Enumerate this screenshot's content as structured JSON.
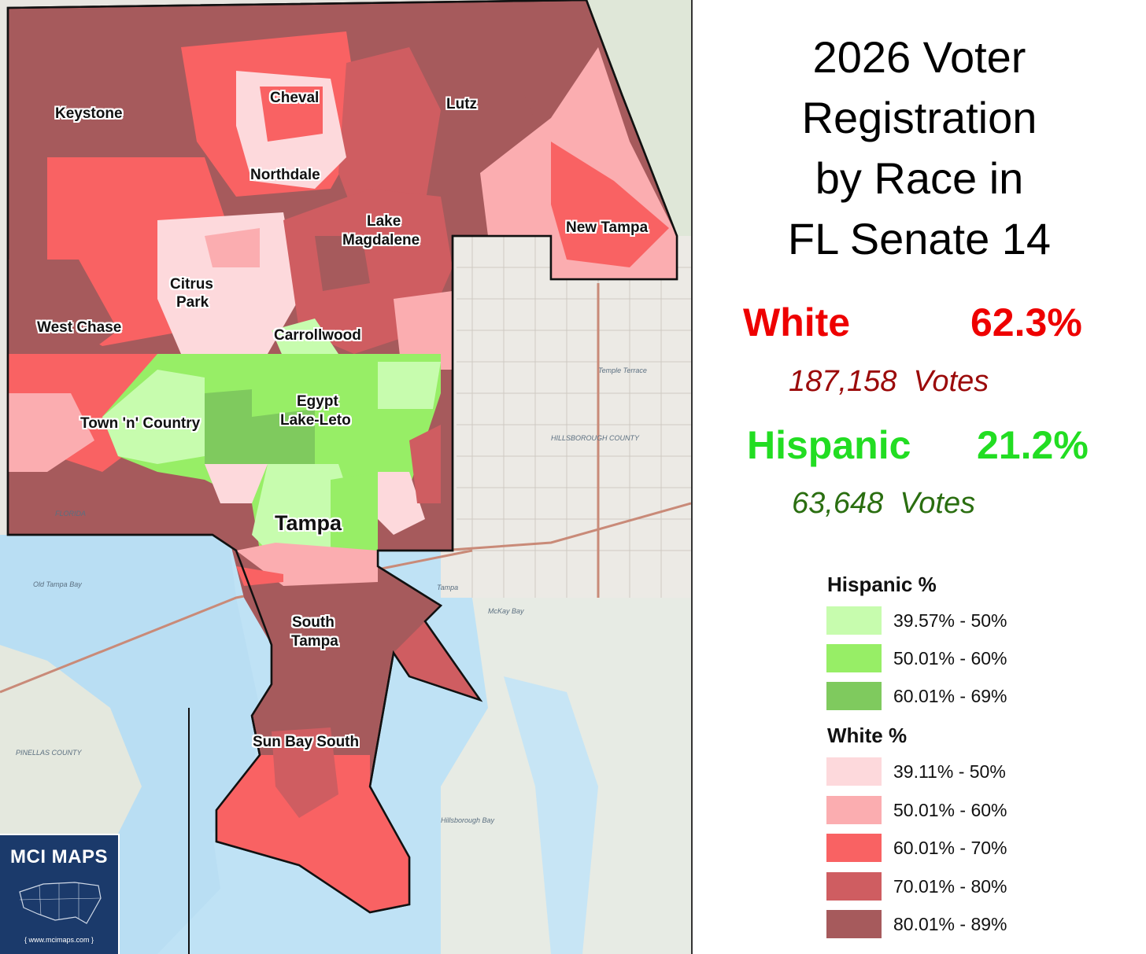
{
  "title_lines": [
    "2026 Voter",
    "Registration",
    "by Race in",
    "FL Senate 14"
  ],
  "stats": {
    "white": {
      "name": "White",
      "pct": "62.3%",
      "votes": "187,158",
      "votes_word": "Votes",
      "color": "#ee0000",
      "votes_color": "#9b0a0a"
    },
    "hispanic": {
      "name": "Hispanic",
      "pct": "21.2%",
      "votes": "63,648",
      "votes_word": "Votes",
      "color": "#22dd22",
      "votes_color": "#2a6e10"
    }
  },
  "legend": {
    "hispanic": {
      "title": "Hispanic  %",
      "items": [
        {
          "label": "39.57% - 50%",
          "color": "#c7fcae"
        },
        {
          "label": "50.01% - 60%",
          "color": "#97ee66"
        },
        {
          "label": "60.01% - 69%",
          "color": "#7fca5e"
        }
      ]
    },
    "white": {
      "title": "White  %",
      "items": [
        {
          "label": "39.11% - 50%",
          "color": "#fdd9dc"
        },
        {
          "label": "50.01% - 60%",
          "color": "#fbadb0"
        },
        {
          "label": "60.01% - 70%",
          "color": "#f96263"
        },
        {
          "label": "70.01% - 80%",
          "color": "#cf5d61"
        },
        {
          "label": "80.01% - 89%",
          "color": "#a65a5c"
        }
      ]
    }
  },
  "places": {
    "keystone": "Keystone",
    "cheval": "Cheval",
    "lutz": "Lutz",
    "northdale": "Northdale",
    "lake_magdalene_1": "Lake",
    "lake_magdalene_2": "Magdalene",
    "new_tampa": "New Tampa",
    "citrus_park_1": "Citrus",
    "citrus_park_2": "Park",
    "west_chase": "West Chase",
    "carrollwood": "Carrollwood",
    "egypt_1": "Egypt",
    "egypt_2": "Lake-Leto",
    "town_n_country": "Town 'n' Country",
    "tampa": "Tampa",
    "south_tampa_1": "South",
    "south_tampa_2": "Tampa",
    "sun_bay_south": "Sun Bay South"
  },
  "basemap": {
    "old_tampa_bay": "Old Tampa Bay",
    "hillsborough_bay": "Hillsborough Bay",
    "hillsborough_county": "HILLSBOROUGH COUNTY",
    "pinellas_county": "PINELLAS COUNTY",
    "temple_terrace": "Temple Terrace",
    "florida": "FLORIDA",
    "mckay_bay": "McKay Bay",
    "tampa_city": "Tampa"
  },
  "logo": {
    "title": "MCI MAPS",
    "url": "{ www.mcimaps.com }"
  }
}
